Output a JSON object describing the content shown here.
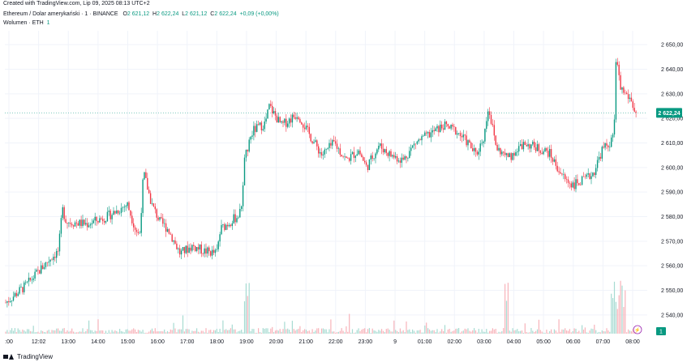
{
  "header": {
    "created": "Created with TradingView.com, Lip 09, 2025 08:13 UTC+2"
  },
  "legend": {
    "symbol": "Ethereum / Dolar amerykański · 1 · BINANCE",
    "open_label": "O",
    "open": "2 621,12",
    "high_label": "H",
    "high": "2 622,24",
    "low_label": "L",
    "low": "2 621,12",
    "close_label": "C",
    "close": "2 622,24",
    "change": "+0,09 (+0,00%)",
    "volume_label": "Wolumen · ETH",
    "volume_value": "1"
  },
  "footer": {
    "brand": "TradingView"
  },
  "colors": {
    "up": "#089981",
    "down": "#f23645",
    "vol_up": "#a7dbd2",
    "vol_down": "#f7b3ba",
    "price_line": "#089981",
    "text": "#131722",
    "grid": "#f0f3fa"
  },
  "chart_data": {
    "type": "candlestick",
    "series_name": "Ethereum / Dolar amerykański",
    "ylim": [
      2535,
      2655
    ],
    "y_ticks": [
      "2 540,00",
      "2 550,00",
      "2 560,00",
      "2 570,00",
      "2 580,00",
      "2 590,00",
      "2 600,00",
      "2 610,00",
      "2 620,00",
      "2 630,00",
      "2 640,00",
      "2 650,00"
    ],
    "y_tick_values": [
      2540,
      2550,
      2560,
      2570,
      2580,
      2590,
      2600,
      2610,
      2620,
      2630,
      2640,
      2650
    ],
    "x_ticks": [
      ":00",
      "12:02",
      "13:00",
      "14:00",
      "15:00",
      "16:00",
      "17:00",
      "18:00",
      "19:00",
      "20:00",
      "21:00",
      "22:00",
      "23:00",
      "9",
      "01:00",
      "02:00",
      "03:00",
      "04:00",
      "05:00",
      "06:00",
      "07:00",
      "08:00"
    ],
    "last_price": 2622.24,
    "last_price_label": "2 622,24",
    "volume_last_label": "1",
    "price_anchors": [
      [
        0,
        2545
      ],
      [
        25,
        2552
      ],
      [
        55,
        2563
      ],
      [
        65,
        2566
      ],
      [
        70,
        2583
      ],
      [
        75,
        2578
      ],
      [
        100,
        2577
      ],
      [
        125,
        2580
      ],
      [
        150,
        2585
      ],
      [
        160,
        2575
      ],
      [
        165,
        2572
      ],
      [
        170,
        2598
      ],
      [
        180,
        2585
      ],
      [
        190,
        2578
      ],
      [
        200,
        2575
      ],
      [
        215,
        2565
      ],
      [
        230,
        2568
      ],
      [
        245,
        2566
      ],
      [
        260,
        2565
      ],
      [
        265,
        2575
      ],
      [
        285,
        2580
      ],
      [
        290,
        2582
      ],
      [
        295,
        2605
      ],
      [
        305,
        2615
      ],
      [
        320,
        2618
      ],
      [
        325,
        2625
      ],
      [
        340,
        2617
      ],
      [
        360,
        2622
      ],
      [
        375,
        2613
      ],
      [
        390,
        2605
      ],
      [
        405,
        2610
      ],
      [
        420,
        2603
      ],
      [
        435,
        2607
      ],
      [
        445,
        2600
      ],
      [
        460,
        2609
      ],
      [
        475,
        2605
      ],
      [
        490,
        2603
      ],
      [
        505,
        2610
      ],
      [
        520,
        2613
      ],
      [
        540,
        2617
      ],
      [
        555,
        2615
      ],
      [
        570,
        2610
      ],
      [
        580,
        2605
      ],
      [
        590,
        2613
      ],
      [
        595,
        2625
      ],
      [
        605,
        2608
      ],
      [
        615,
        2605
      ],
      [
        625,
        2605
      ],
      [
        640,
        2610
      ],
      [
        655,
        2608
      ],
      [
        670,
        2606
      ],
      [
        680,
        2600
      ],
      [
        690,
        2595
      ],
      [
        700,
        2593
      ],
      [
        715,
        2595
      ],
      [
        725,
        2598
      ],
      [
        735,
        2607
      ],
      [
        745,
        2610
      ],
      [
        750,
        2612
      ],
      [
        752,
        2645
      ],
      [
        758,
        2632
      ],
      [
        770,
        2628
      ],
      [
        778,
        2621
      ]
    ]
  }
}
